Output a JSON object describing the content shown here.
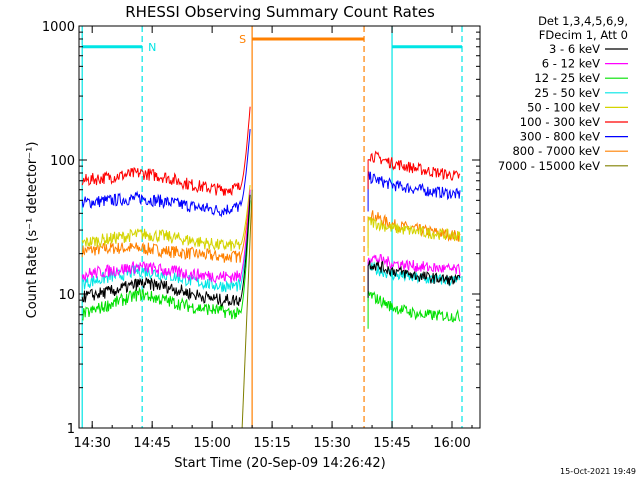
{
  "chart_data": {
    "type": "line",
    "title": "RHESSI Observing Summary Count Rates",
    "xlabel": "Start Time (20-Sep-09 14:26:42)",
    "ylabel": "Count Rate (s⁻¹ detector⁻¹)",
    "x_scale": "time",
    "y_scale": "log",
    "xlim": [
      "14:26:42",
      "16:07:00"
    ],
    "ylim": [
      1,
      1000
    ],
    "x_tick_labels": [
      "14:30",
      "14:45",
      "15:00",
      "15:15",
      "15:30",
      "15:45",
      "16:00"
    ],
    "y_tick_labels": [
      "1",
      "10",
      "100",
      "1000"
    ],
    "legend_header": [
      "Det 1,3,4,5,6,9,",
      "FDecim 1, Att 0"
    ],
    "legend_position": "right",
    "timestamp": "15-Oct-2021 19:49",
    "attenuator_segments": [
      {
        "label": "N",
        "start": "14:27:30",
        "end": "14:42:30",
        "level": 700,
        "color": "#00e5e5"
      },
      {
        "label": "S",
        "start": "15:10:00",
        "end": "15:38:00",
        "level": 800,
        "color": "#ff8000"
      },
      {
        "label": "",
        "start": "15:45:00",
        "end": "16:02:30",
        "level": 700,
        "color": "#00e5e5"
      }
    ],
    "event_lines": [
      {
        "time": "14:27:30",
        "style": "solid",
        "color": "#00e5e5"
      },
      {
        "time": "14:42:30",
        "style": "dashed",
        "color": "#00e5e5"
      },
      {
        "time": "15:10:00",
        "style": "solid",
        "color": "#ff8000"
      },
      {
        "time": "15:38:00",
        "style": "dashed",
        "color": "#ff8000"
      },
      {
        "time": "15:45:00",
        "style": "solid",
        "color": "#00e5e5"
      },
      {
        "time": "16:02:30",
        "style": "dashed",
        "color": "#00e5e5"
      }
    ],
    "series": [
      {
        "name": "3 - 6 keV",
        "color": "#000000",
        "pre": {
          "x": [
            "14:27:30",
            "14:35",
            "14:42",
            "14:48",
            "14:55",
            "15:02",
            "15:07"
          ],
          "y": [
            9.5,
            10.5,
            12,
            11.5,
            10,
            9,
            9
          ]
        },
        "rise_end": 55,
        "post": {
          "x": [
            "15:39",
            "15:45",
            "15:52",
            "16:02"
          ],
          "y": [
            17,
            15,
            13.5,
            12.5
          ]
        }
      },
      {
        "name": "6 - 12 keV",
        "color": "#ff00ff",
        "pre": {
          "x": [
            "14:27:30",
            "14:35",
            "14:42",
            "14:48",
            "14:55",
            "15:02",
            "15:07"
          ],
          "y": [
            14,
            15,
            16,
            15,
            14,
            13.5,
            13.5
          ]
        },
        "rise_end": 60,
        "post": {
          "x": [
            "15:39",
            "15:45",
            "15:52",
            "16:02"
          ],
          "y": [
            19,
            17,
            16,
            15
          ]
        }
      },
      {
        "name": "12 - 25 keV",
        "color": "#00e000",
        "pre": {
          "x": [
            "14:27:30",
            "14:35",
            "14:42",
            "14:48",
            "14:55",
            "15:02",
            "15:07"
          ],
          "y": [
            7,
            8.5,
            10,
            9,
            8,
            7.5,
            7
          ]
        },
        "rise_end": 50,
        "post": {
          "x": [
            "15:39",
            "15:45",
            "15:52",
            "16:02"
          ],
          "y": [
            10,
            8,
            7,
            6.8
          ]
        }
      },
      {
        "name": "25 - 50 keV",
        "color": "#00e5e5",
        "pre": {
          "x": [
            "14:27:30",
            "14:35",
            "14:42",
            "14:48",
            "14:55",
            "15:02",
            "15:07"
          ],
          "y": [
            12,
            13.5,
            15,
            14,
            12.5,
            11.5,
            11.5
          ]
        },
        "rise_end": 58,
        "post": {
          "x": [
            "15:39",
            "15:45",
            "15:52",
            "16:02"
          ],
          "y": [
            16,
            14,
            13,
            12.5
          ]
        }
      },
      {
        "name": "50 - 100 keV",
        "color": "#d4d400",
        "pre": {
          "x": [
            "14:27:30",
            "14:35",
            "14:42",
            "14:48",
            "14:55",
            "15:02",
            "15:07"
          ],
          "y": [
            24,
            26,
            28,
            27,
            25,
            23,
            23
          ]
        },
        "rise_end": 65,
        "post": {
          "x": [
            "15:39",
            "15:45",
            "15:52",
            "16:02"
          ],
          "y": [
            35,
            31,
            29,
            27
          ]
        }
      },
      {
        "name": "100 - 300 keV",
        "color": "#ff0000",
        "pre": {
          "x": [
            "14:27:30",
            "14:35",
            "14:42",
            "14:48",
            "14:55",
            "15:02",
            "15:07"
          ],
          "y": [
            70,
            75,
            80,
            75,
            65,
            60,
            62
          ]
        },
        "rise_end": 250,
        "post": {
          "x": [
            "15:39",
            "15:45",
            "15:52",
            "16:02"
          ],
          "y": [
            110,
            95,
            85,
            75
          ]
        }
      },
      {
        "name": "300 - 800 keV",
        "color": "#0000ff",
        "pre": {
          "x": [
            "14:27:30",
            "14:35",
            "14:42",
            "14:48",
            "14:55",
            "15:02",
            "15:07"
          ],
          "y": [
            48,
            50,
            52,
            49,
            45,
            42,
            45
          ]
        },
        "rise_end": 170,
        "post": {
          "x": [
            "15:39",
            "15:45",
            "15:52",
            "16:02"
          ],
          "y": [
            75,
            65,
            60,
            55
          ]
        }
      },
      {
        "name": "800 - 7000 keV",
        "color": "#ff8000",
        "pre": {
          "x": [
            "14:27:30",
            "14:35",
            "14:42",
            "14:48",
            "14:55",
            "15:02",
            "15:07"
          ],
          "y": [
            21,
            22,
            22,
            21,
            20,
            19,
            19
          ]
        },
        "rise_end": 60,
        "post": {
          "x": [
            "15:39",
            "15:45",
            "15:52",
            "16:02"
          ],
          "y": [
            40,
            33,
            30,
            27
          ]
        }
      },
      {
        "name": "7000 - 15000 keV",
        "color": "#808000",
        "pre": {
          "x": [
            "15:07:30",
            "15:10"
          ],
          "y": [
            1,
            60
          ]
        },
        "rise_end": 60,
        "post": {
          "x": [],
          "y": []
        }
      }
    ]
  }
}
